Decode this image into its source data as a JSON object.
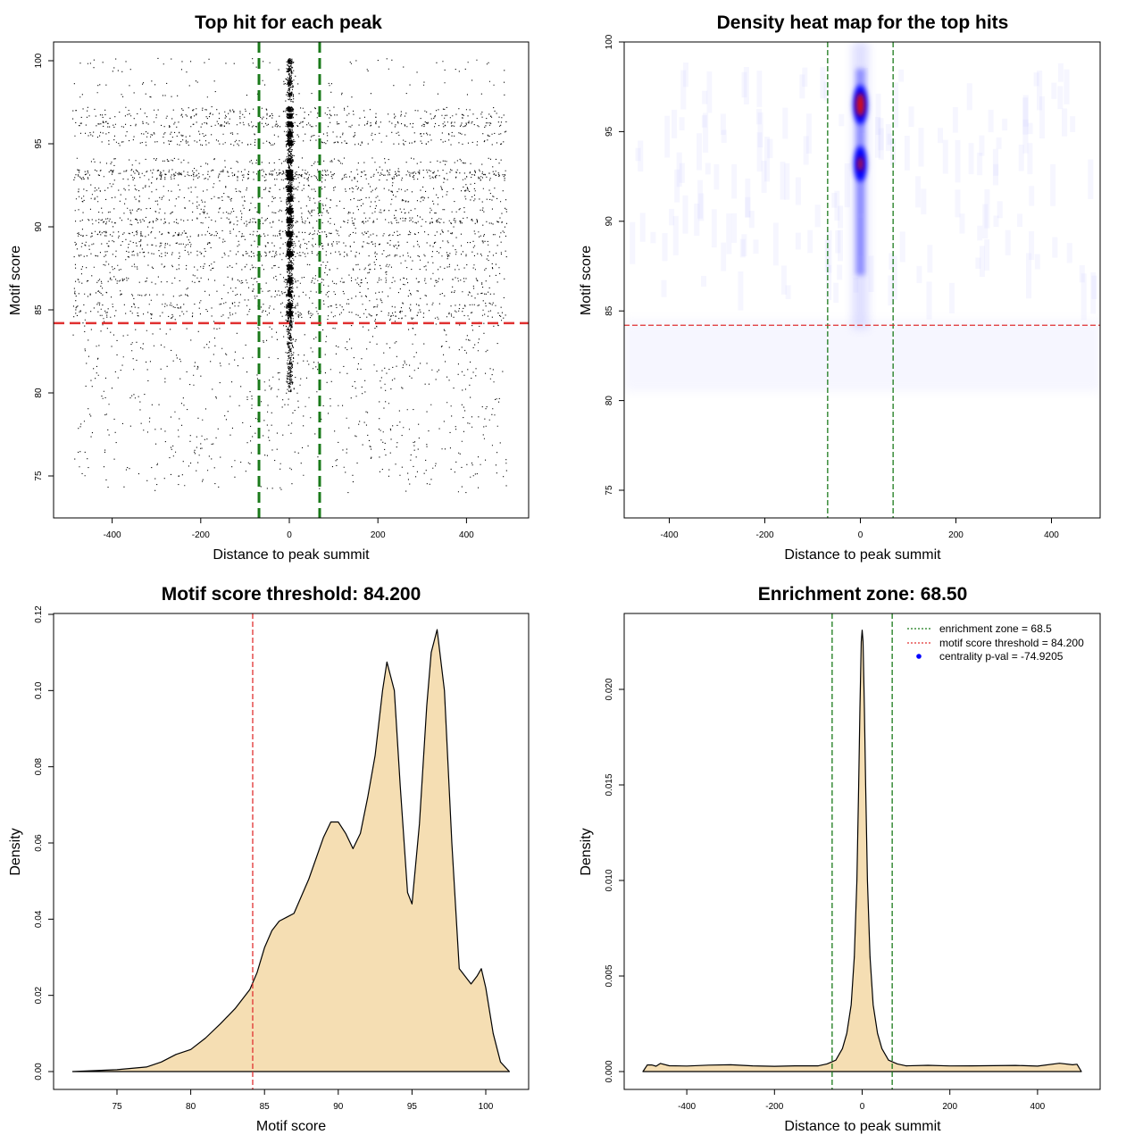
{
  "chart_data": [
    {
      "type": "scatter",
      "title": "Top hit for each peak",
      "xlabel": "Distance to peak summit",
      "ylabel": "Motif score",
      "xlim": [
        -500,
        500
      ],
      "ylim": [
        73,
        100
      ],
      "xticks": [
        -400,
        -200,
        0,
        200,
        400
      ],
      "yticks": [
        75,
        80,
        85,
        90,
        95,
        100
      ],
      "vlines": [
        -68.5,
        68.5
      ],
      "hline": 84.2,
      "score_bands": [
        {
          "score": 100.0,
          "weight": 0.3
        },
        {
          "score": 99.5,
          "weight": 0.2
        },
        {
          "score": 98.7,
          "weight": 0.4
        },
        {
          "score": 98.0,
          "weight": 0.3
        },
        {
          "score": 97.1,
          "weight": 0.8
        },
        {
          "score": 96.7,
          "weight": 1.4
        },
        {
          "score": 96.2,
          "weight": 2.0
        },
        {
          "score": 95.6,
          "weight": 1.0
        },
        {
          "score": 95.1,
          "weight": 1.2
        },
        {
          "score": 94.0,
          "weight": 0.8
        },
        {
          "score": 93.3,
          "weight": 2.2
        },
        {
          "score": 93.0,
          "weight": 1.6
        },
        {
          "score": 92.3,
          "weight": 1.1
        },
        {
          "score": 91.7,
          "weight": 1.0
        },
        {
          "score": 91.0,
          "weight": 1.0
        },
        {
          "score": 90.4,
          "weight": 1.6
        },
        {
          "score": 89.6,
          "weight": 1.8
        },
        {
          "score": 89.0,
          "weight": 1.2
        },
        {
          "score": 88.4,
          "weight": 1.4
        },
        {
          "score": 87.6,
          "weight": 1.1
        },
        {
          "score": 86.8,
          "weight": 1.0
        },
        {
          "score": 86.0,
          "weight": 0.9
        },
        {
          "score": 85.3,
          "weight": 0.8
        },
        {
          "score": 84.8,
          "weight": 0.9
        }
      ]
    },
    {
      "type": "heatmap",
      "title": "Density heat map for the top hits",
      "xlabel": "Distance to peak summit",
      "ylabel": "Motif score",
      "xlim": [
        -500,
        500
      ],
      "ylim": [
        73.5,
        100
      ],
      "xticks": [
        -400,
        -200,
        0,
        200,
        400
      ],
      "yticks": [
        75,
        80,
        85,
        90,
        95,
        100
      ],
      "vlines": [
        -68.5,
        68.5
      ],
      "hline": 84.2,
      "hotspots": [
        {
          "x": 0,
          "y": 96.5,
          "intensity": "max"
        },
        {
          "x": 0,
          "y": 93.2,
          "intensity": "high"
        }
      ]
    },
    {
      "type": "area",
      "title": "Motif score threshold: 84.200",
      "xlabel": "Motif score",
      "ylabel": "Density",
      "xlim": [
        72,
        101.6
      ],
      "ylim": [
        0,
        0.12
      ],
      "xticks": [
        75,
        80,
        85,
        90,
        95,
        100
      ],
      "yticks": [
        0.0,
        0.02,
        0.04,
        0.06,
        0.08,
        0.1,
        0.12
      ],
      "ytick_labels": [
        "0.00",
        "0.02",
        "0.04",
        "0.06",
        "0.08",
        "0.10",
        "0.12"
      ],
      "vline": 84.2,
      "x": [
        72,
        75,
        77,
        78,
        79,
        80,
        81,
        82,
        83,
        84,
        84.5,
        85,
        85.5,
        86,
        86.5,
        87,
        88,
        89,
        89.5,
        90,
        90.5,
        91,
        91.5,
        92,
        92.5,
        93,
        93.3,
        93.8,
        94.2,
        94.7,
        95,
        95.5,
        96,
        96.3,
        96.7,
        97.2,
        97.7,
        98.2,
        99,
        99.4,
        99.7,
        100,
        100.5,
        101,
        101.6
      ],
      "y": [
        0,
        0.0005,
        0.0012,
        0.0025,
        0.0045,
        0.0058,
        0.0088,
        0.0125,
        0.0165,
        0.0215,
        0.026,
        0.0325,
        0.037,
        0.0395,
        0.0405,
        0.0415,
        0.0505,
        0.0615,
        0.0655,
        0.0655,
        0.0625,
        0.0585,
        0.0625,
        0.072,
        0.083,
        0.1,
        0.1075,
        0.1,
        0.075,
        0.047,
        0.044,
        0.065,
        0.096,
        0.11,
        0.116,
        0.1,
        0.06,
        0.027,
        0.023,
        0.025,
        0.027,
        0.022,
        0.01,
        0.0025,
        0
      ]
    },
    {
      "type": "area",
      "title": "Enrichment zone: 68.50",
      "xlabel": "Distance to peak summit",
      "ylabel": "Density",
      "xlim": [
        -545,
        545
      ],
      "ylim": [
        -0.0005,
        0.0235
      ],
      "xticks": [
        -400,
        -200,
        0,
        200,
        400
      ],
      "yticks": [
        0.0,
        0.005,
        0.01,
        0.015,
        0.02
      ],
      "ytick_labels": [
        "0.000",
        "0.005",
        "0.010",
        "0.015",
        "0.020"
      ],
      "vlines": [
        -68.5,
        68.5
      ],
      "x": [
        -500,
        -490,
        -480,
        -470,
        -460,
        -440,
        -400,
        -350,
        -300,
        -250,
        -200,
        -150,
        -120,
        -100,
        -80,
        -60,
        -45,
        -35,
        -25,
        -18,
        -12,
        -8,
        -5,
        -2,
        0,
        2,
        5,
        8,
        12,
        18,
        25,
        35,
        45,
        60,
        80,
        100,
        150,
        200,
        250,
        300,
        350,
        400,
        450,
        480,
        490,
        500
      ],
      "y": [
        0,
        0.0003,
        0.0004,
        0.0003,
        0.0004,
        0.0003,
        0.0003,
        0.0003,
        0.0003,
        0.0003,
        0.0003,
        0.0003,
        0.0003,
        0.0003,
        0.0004,
        0.0006,
        0.0012,
        0.002,
        0.0035,
        0.006,
        0.01,
        0.015,
        0.019,
        0.0225,
        0.0231,
        0.0225,
        0.019,
        0.015,
        0.01,
        0.006,
        0.0035,
        0.002,
        0.0012,
        0.0006,
        0.0004,
        0.0003,
        0.0003,
        0.0003,
        0.0003,
        0.0003,
        0.0003,
        0.0003,
        0.0004,
        0.0003,
        0.0004,
        0
      ],
      "legend": [
        {
          "label": "enrichment zone = 68.5",
          "color": "#1a7a1a",
          "kind": "line"
        },
        {
          "label": "motif score threshold = 84.200",
          "color": "#e03030",
          "kind": "line"
        },
        {
          "label": "centrality p-val = -74.9205",
          "color": "#0000ff",
          "kind": "point"
        }
      ]
    }
  ],
  "colors": {
    "fill": "#f5deb3",
    "green": "#1a7a1a",
    "red": "#e03030",
    "blue": "#0000ff"
  }
}
